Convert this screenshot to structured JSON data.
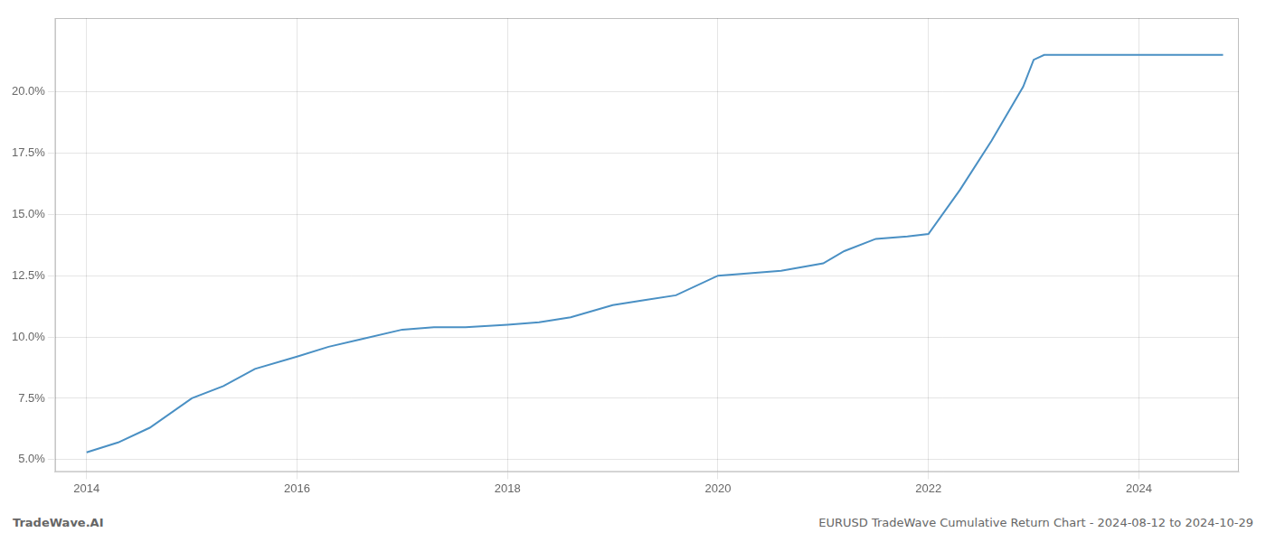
{
  "chart_data": {
    "type": "line",
    "title": "EURUSD TradeWave Cumulative Return Chart - 2024-08-12 to 2024-10-29",
    "annotations": [
      "TradeWave.AI"
    ],
    "x": [
      2014.0,
      2014.3,
      2014.6,
      2015.0,
      2015.3,
      2015.6,
      2016.0,
      2016.3,
      2016.6,
      2017.0,
      2017.3,
      2017.6,
      2018.0,
      2018.3,
      2018.6,
      2019.0,
      2019.3,
      2019.6,
      2020.0,
      2020.3,
      2020.6,
      2021.0,
      2021.2,
      2021.5,
      2021.8,
      2022.0,
      2022.3,
      2022.6,
      2022.9,
      2023.0,
      2023.1,
      2023.3,
      2023.6,
      2024.0,
      2024.8
    ],
    "values": [
      5.3,
      5.7,
      6.3,
      7.5,
      8.0,
      8.7,
      9.2,
      9.6,
      9.9,
      10.3,
      10.4,
      10.4,
      10.5,
      10.6,
      10.8,
      11.3,
      11.5,
      11.7,
      12.5,
      12.6,
      12.7,
      13.0,
      13.5,
      14.0,
      14.1,
      14.2,
      16.0,
      18.0,
      20.2,
      21.3,
      21.5,
      21.5,
      21.5,
      21.5,
      21.5
    ],
    "color": "#4a90c4",
    "marker": "none",
    "xlim": [
      2013.7,
      2024.95
    ],
    "ylim": [
      4.5,
      23.0
    ],
    "xticks": [
      2014,
      2016,
      2018,
      2020,
      2022,
      2024
    ],
    "yticks": [
      {
        "value": 5.0,
        "label": "5.0%"
      },
      {
        "value": 7.5,
        "label": "7.5%"
      },
      {
        "value": 10.0,
        "label": "10.0%"
      },
      {
        "value": 12.5,
        "label": "12.5%"
      },
      {
        "value": 15.0,
        "label": "15.0%"
      },
      {
        "value": 17.5,
        "label": "17.5%"
      },
      {
        "value": 20.0,
        "label": "20.0%"
      }
    ],
    "grid": true
  }
}
